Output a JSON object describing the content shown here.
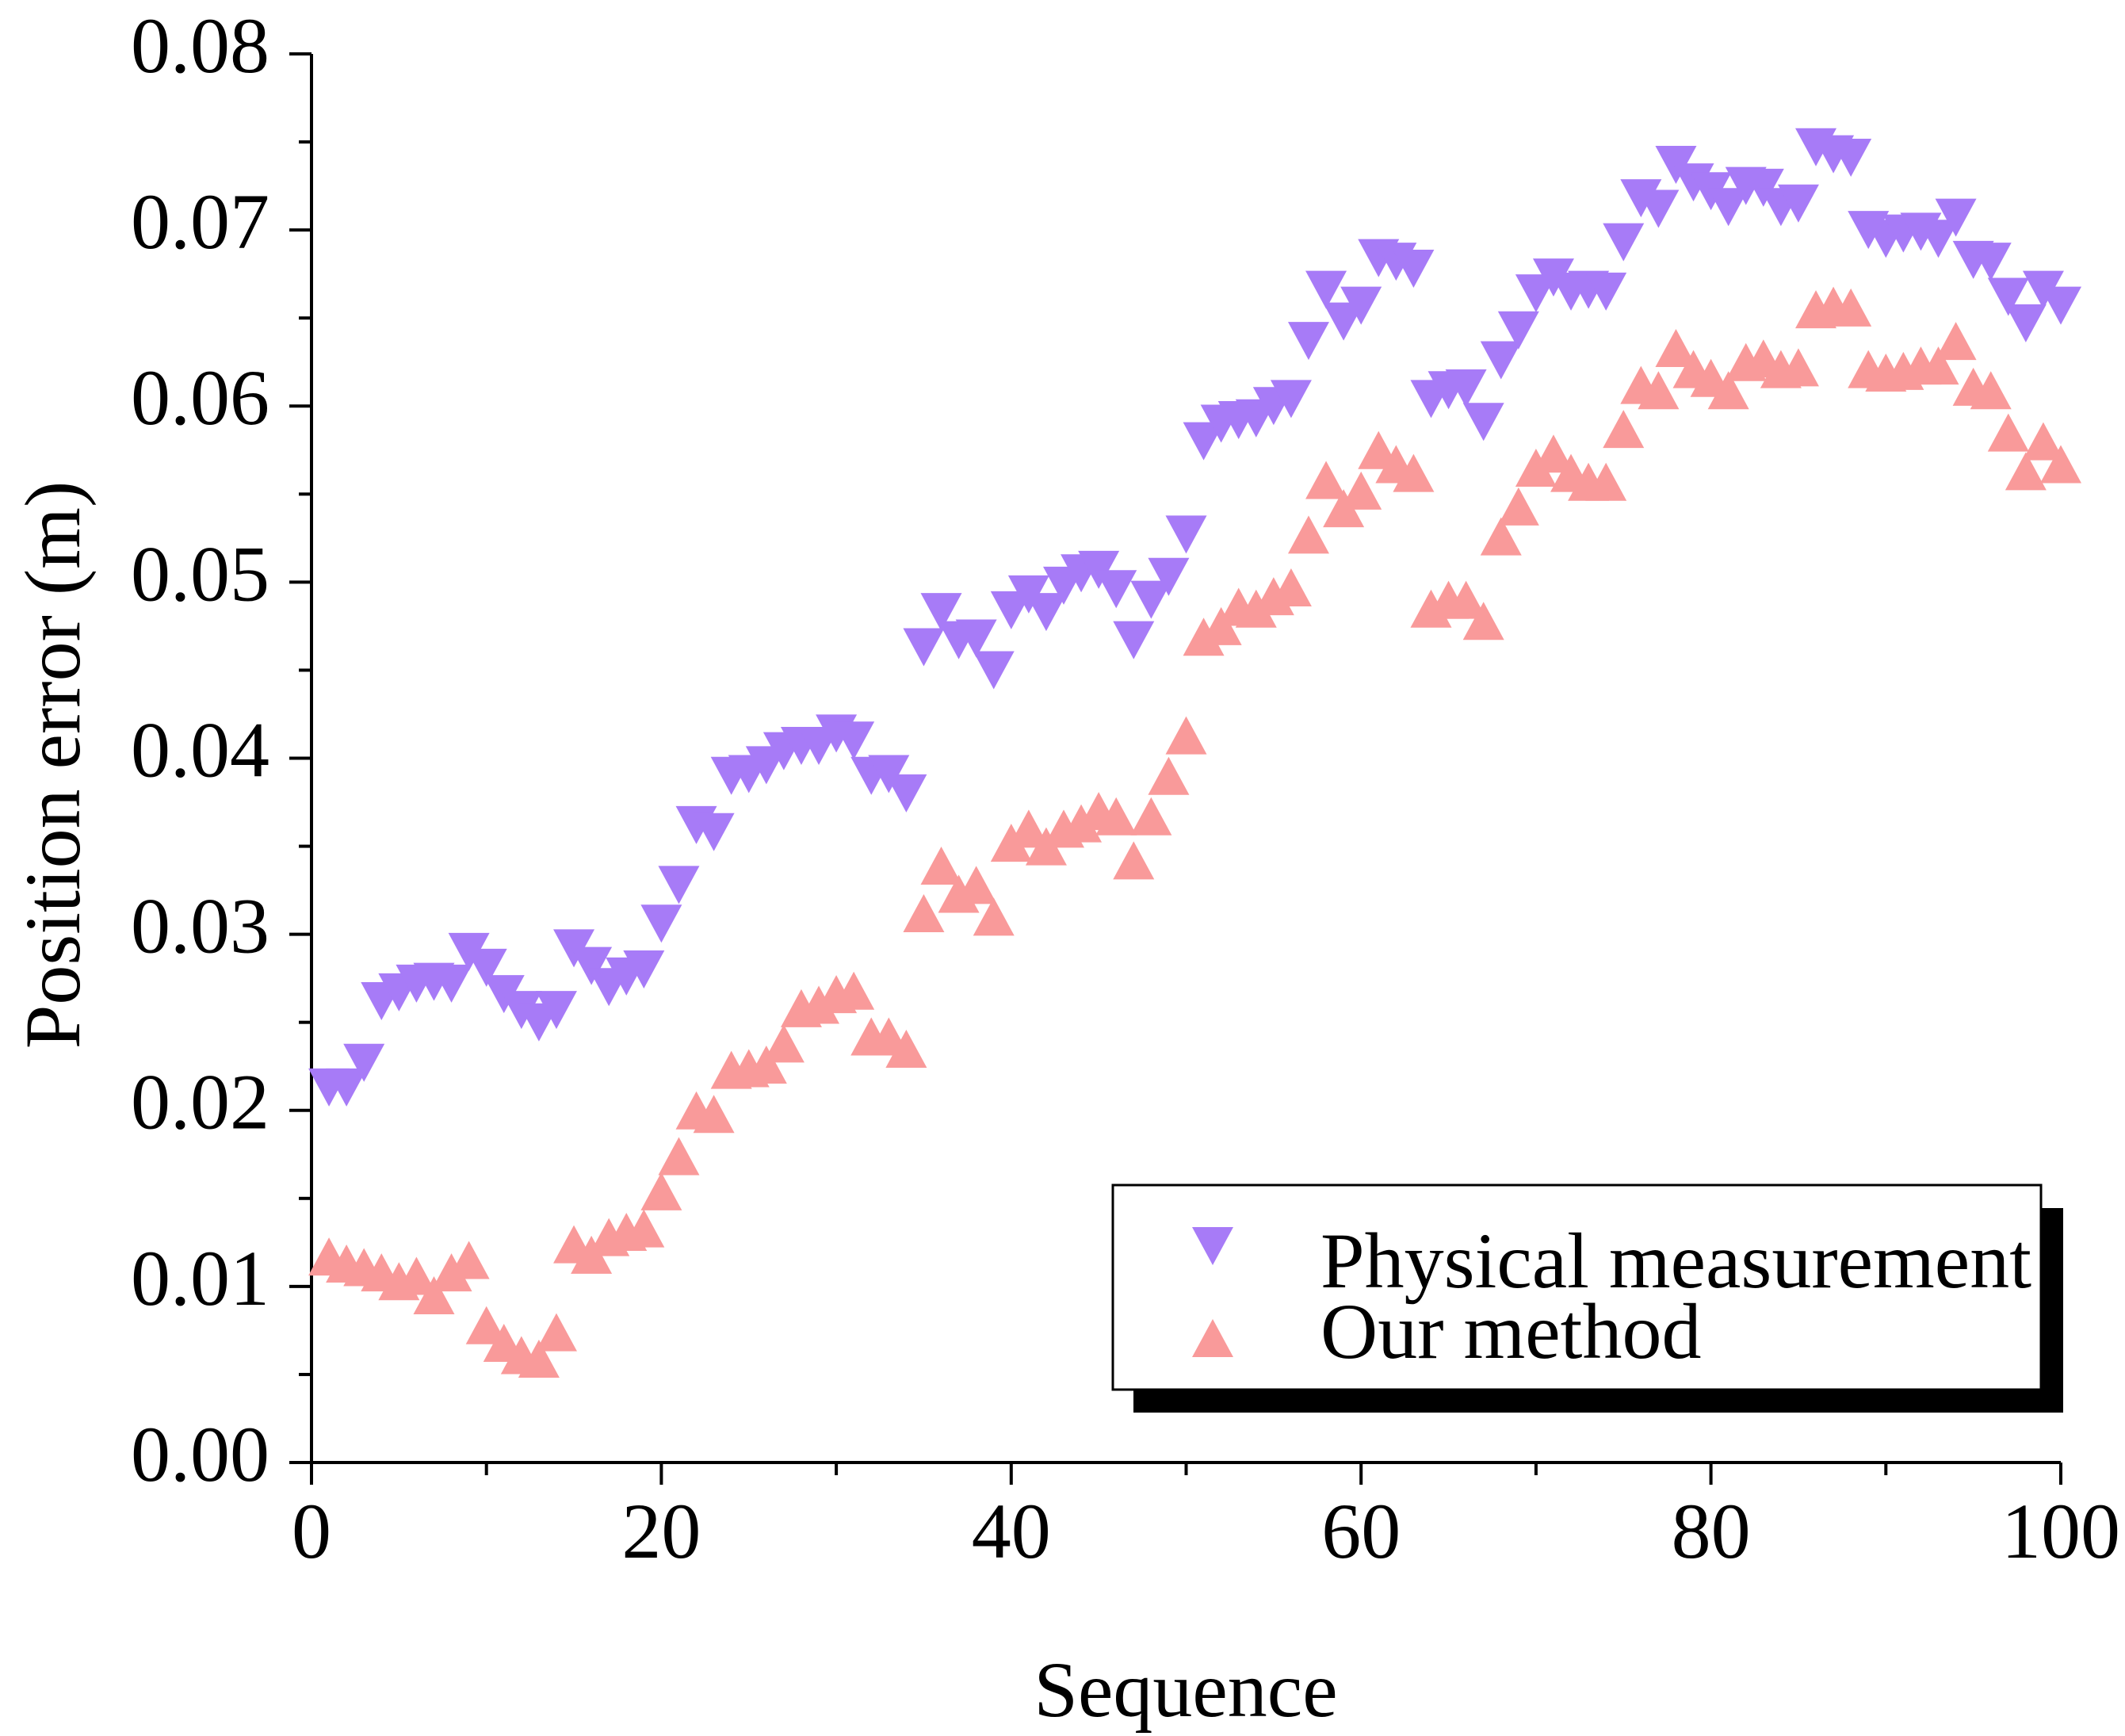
{
  "colors": {
    "physical": "#A77BF7",
    "ours": "#F99A9A",
    "axis": "#000000"
  },
  "chart_data": {
    "type": "scatter",
    "title": "",
    "xlabel": "Sequence",
    "ylabel": "Position error (m)",
    "xlim": [
      0,
      100
    ],
    "ylim": [
      0,
      0.08
    ],
    "xticks": [
      "0",
      "20",
      "40",
      "60",
      "80",
      "100"
    ],
    "yticks": [
      "0.00",
      "0.01",
      "0.02",
      "0.03",
      "0.04",
      "0.05",
      "0.06",
      "0.07",
      "0.08"
    ],
    "legend_position": "bottom-right",
    "series": [
      {
        "name": "Physical measurement",
        "marker": "triangle-down",
        "x": [
          1,
          2,
          3,
          4,
          5,
          6,
          7,
          8,
          9,
          10,
          11,
          12,
          13,
          14,
          15,
          16,
          17,
          18,
          19,
          20,
          21,
          22,
          23,
          24,
          25,
          26,
          27,
          28,
          29,
          30,
          31,
          32,
          33,
          34,
          35,
          36,
          37,
          38,
          39,
          40,
          41,
          42,
          43,
          44,
          45,
          46,
          47,
          48,
          49,
          50,
          51,
          52,
          53,
          54,
          55,
          56,
          57,
          58,
          59,
          60,
          61,
          62,
          63,
          64,
          65,
          66,
          67,
          68,
          69,
          70,
          71,
          72,
          73,
          74,
          75,
          76,
          77,
          78,
          79,
          80,
          81,
          82,
          83,
          84,
          85,
          86,
          87,
          88,
          89,
          90,
          91,
          92,
          93,
          94,
          95,
          96,
          97,
          98,
          99,
          100
        ],
        "y": [
          0.0213,
          0.0213,
          0.0227,
          0.0262,
          0.0267,
          0.0272,
          0.0273,
          0.0272,
          0.029,
          0.0281,
          0.0266,
          0.0257,
          0.025,
          0.0257,
          0.0292,
          0.0282,
          0.027,
          0.0276,
          0.028,
          0.0306,
          0.0328,
          0.0362,
          0.0358,
          0.039,
          0.0391,
          0.0396,
          0.0404,
          0.0407,
          0.0407,
          0.0414,
          0.041,
          0.039,
          0.0391,
          0.038,
          0.0463,
          0.0483,
          0.0467,
          0.0468,
          0.045,
          0.0484,
          0.0493,
          0.0483,
          0.0498,
          0.0505,
          0.0507,
          0.0496,
          0.0467,
          0.049,
          0.0503,
          0.0527,
          0.058,
          0.059,
          0.0592,
          0.0593,
          0.06,
          0.0604,
          0.0637,
          0.0666,
          0.0648,
          0.0657,
          0.0684,
          0.0682,
          0.0678,
          0.0604,
          0.0609,
          0.061,
          0.0591,
          0.0626,
          0.0643,
          0.0664,
          0.0673,
          0.0665,
          0.0666,
          0.0665,
          0.0693,
          0.0718,
          0.0712,
          0.0737,
          0.0727,
          0.0722,
          0.0713,
          0.0725,
          0.0724,
          0.0713,
          0.0715,
          0.0747,
          0.0743,
          0.0741,
          0.07,
          0.0695,
          0.0698,
          0.0699,
          0.0695,
          0.0707,
          0.0683,
          0.0682,
          0.0662,
          0.0647,
          0.0666,
          0.0657
        ]
      },
      {
        "name": "Our method",
        "marker": "triangle-up",
        "x": [
          1,
          2,
          3,
          4,
          5,
          6,
          7,
          8,
          9,
          10,
          11,
          12,
          13,
          14,
          15,
          16,
          17,
          18,
          19,
          20,
          21,
          22,
          23,
          24,
          25,
          26,
          27,
          28,
          29,
          30,
          31,
          32,
          33,
          34,
          35,
          36,
          37,
          38,
          39,
          40,
          41,
          42,
          43,
          44,
          45,
          46,
          47,
          48,
          49,
          50,
          51,
          52,
          53,
          54,
          55,
          56,
          57,
          58,
          59,
          60,
          61,
          62,
          63,
          64,
          65,
          66,
          67,
          68,
          69,
          70,
          71,
          72,
          73,
          74,
          75,
          76,
          77,
          78,
          79,
          80,
          81,
          82,
          83,
          84,
          85,
          86,
          87,
          88,
          89,
          90,
          91,
          92,
          93,
          94,
          95,
          96,
          97,
          98,
          99,
          100
        ],
        "y": [
          0.0117,
          0.0113,
          0.0111,
          0.0108,
          0.0103,
          0.0106,
          0.0095,
          0.0108,
          0.0115,
          0.0078,
          0.0068,
          0.0061,
          0.0059,
          0.0074,
          0.0124,
          0.0118,
          0.0128,
          0.0131,
          0.0133,
          0.0154,
          0.0174,
          0.02,
          0.0198,
          0.0223,
          0.0224,
          0.0226,
          0.0238,
          0.0258,
          0.026,
          0.0266,
          0.0268,
          0.0242,
          0.0242,
          0.0235,
          0.0312,
          0.0339,
          0.0323,
          0.0328,
          0.031,
          0.0352,
          0.036,
          0.035,
          0.036,
          0.0363,
          0.037,
          0.0367,
          0.0342,
          0.0367,
          0.039,
          0.0413,
          0.0469,
          0.0475,
          0.0486,
          0.0485,
          0.0492,
          0.0497,
          0.0527,
          0.0558,
          0.0542,
          0.0552,
          0.0575,
          0.0567,
          0.0562,
          0.0485,
          0.049,
          0.049,
          0.0478,
          0.0526,
          0.0543,
          0.0565,
          0.0573,
          0.0562,
          0.0557,
          0.0557,
          0.0587,
          0.0612,
          0.0609,
          0.0633,
          0.0621,
          0.0616,
          0.0609,
          0.0625,
          0.0627,
          0.0621,
          0.0622,
          0.0655,
          0.0657,
          0.0656,
          0.0621,
          0.0619,
          0.062,
          0.0623,
          0.0623,
          0.0637,
          0.0611,
          0.0609,
          0.0585,
          0.0563,
          0.058,
          0.0567
        ]
      }
    ]
  }
}
